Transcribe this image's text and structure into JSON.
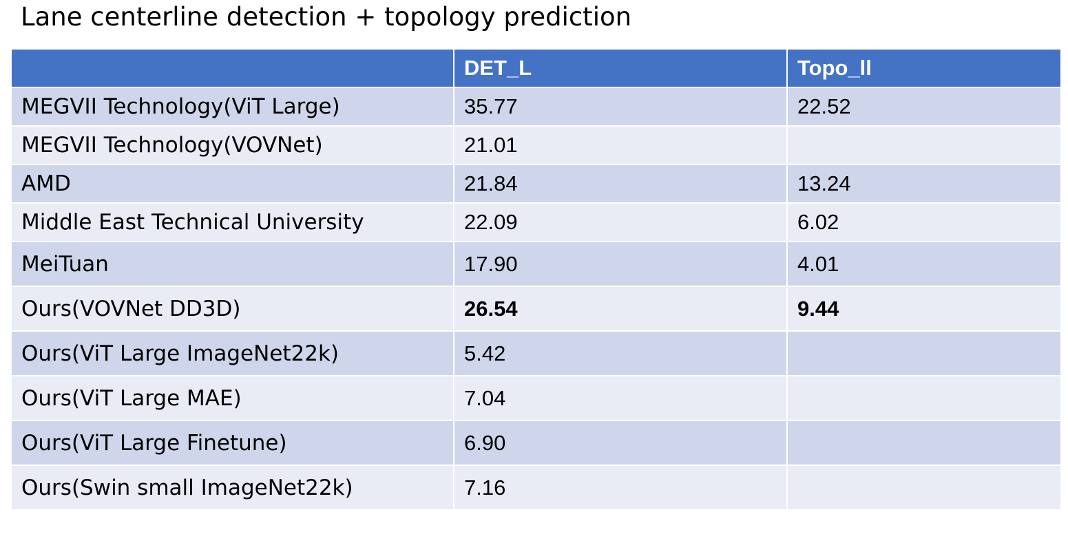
{
  "title": "Lane centerline detection + topology prediction",
  "table": {
    "columns": [
      "",
      "DET_L",
      "Topo_ll"
    ],
    "rows": [
      {
        "method": "MEGVII Technology(ViT Large)",
        "det_l": "35.77",
        "topo_ll": "22.52",
        "bold": false
      },
      {
        "method": "MEGVII Technology(VOVNet)",
        "det_l": "21.01",
        "topo_ll": "",
        "bold": false
      },
      {
        "method": "AMD",
        "det_l": "21.84",
        "topo_ll": "13.24",
        "bold": false
      },
      {
        "method": "Middle East Technical University",
        "det_l": "22.09",
        "topo_ll": "6.02",
        "bold": false
      },
      {
        "method": "MeiTuan",
        "det_l": "17.90",
        "topo_ll": "4.01",
        "bold": false
      },
      {
        "method": "Ours(VOVNet DD3D)",
        "det_l": "26.54",
        "topo_ll": "9.44",
        "bold": true
      },
      {
        "method": "Ours(ViT Large ImageNet22k)",
        "det_l": "5.42",
        "topo_ll": "",
        "bold": false
      },
      {
        "method": "Ours(ViT Large MAE)",
        "det_l": "7.04",
        "topo_ll": "",
        "bold": false
      },
      {
        "method": "Ours(ViT Large Finetune)",
        "det_l": "6.90",
        "topo_ll": "",
        "bold": false
      },
      {
        "method": "Ours(Swin small ImageNet22k)",
        "det_l": "7.16",
        "topo_ll": "",
        "bold": false
      }
    ]
  },
  "colors": {
    "header_bg": "#4472c4",
    "row_dark": "#cfd5ea",
    "row_light": "#e9ebf5"
  }
}
